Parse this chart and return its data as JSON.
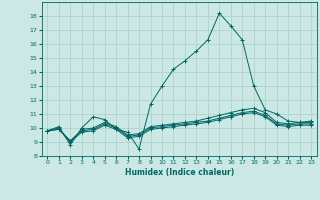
{
  "xlabel": "Humidex (Indice chaleur)",
  "background_color": "#cce8e5",
  "grid_color": "#aacfcc",
  "line_color": "#006663",
  "xlim": [
    -0.5,
    23.5
  ],
  "ylim": [
    8.0,
    19.0
  ],
  "xticks": [
    0,
    1,
    2,
    3,
    4,
    5,
    6,
    7,
    8,
    9,
    10,
    11,
    12,
    13,
    14,
    15,
    16,
    17,
    18,
    19,
    20,
    21,
    22,
    23
  ],
  "yticks": [
    8,
    9,
    10,
    11,
    12,
    13,
    14,
    15,
    16,
    17,
    18
  ],
  "series": [
    [
      9.8,
      10.1,
      8.8,
      10.0,
      10.8,
      10.6,
      9.9,
      9.7,
      8.5,
      11.7,
      13.0,
      14.2,
      14.8,
      15.5,
      16.3,
      18.2,
      17.3,
      16.3,
      13.0,
      11.3,
      11.0,
      10.5,
      10.4,
      10.5
    ],
    [
      9.8,
      10.0,
      9.0,
      9.9,
      10.0,
      10.4,
      10.1,
      9.5,
      9.6,
      10.1,
      10.2,
      10.3,
      10.4,
      10.5,
      10.7,
      10.9,
      11.1,
      11.3,
      11.4,
      11.1,
      10.4,
      10.3,
      10.4,
      10.4
    ],
    [
      9.8,
      9.9,
      9.1,
      9.8,
      9.9,
      10.3,
      10.0,
      9.4,
      9.5,
      10.0,
      10.1,
      10.2,
      10.3,
      10.4,
      10.5,
      10.7,
      10.9,
      11.1,
      11.2,
      10.9,
      10.3,
      10.2,
      10.3,
      10.3
    ],
    [
      9.8,
      9.9,
      9.0,
      9.7,
      9.8,
      10.2,
      9.9,
      9.3,
      9.4,
      9.9,
      10.0,
      10.1,
      10.2,
      10.3,
      10.4,
      10.6,
      10.8,
      11.0,
      11.1,
      10.8,
      10.2,
      10.1,
      10.2,
      10.2
    ]
  ]
}
